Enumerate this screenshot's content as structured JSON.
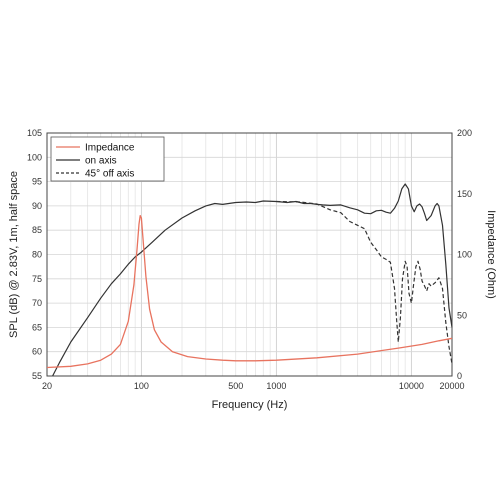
{
  "chart_data": {
    "type": "line",
    "xlabel": "Frequency (Hz)",
    "ylabel": "SPL (dB) @ 2.83V, 1m, half space",
    "y2label": "Impedance (Ohm)",
    "xscale": "log",
    "xlim": [
      20,
      20000
    ],
    "ylim": [
      55,
      105
    ],
    "y2lim": [
      0,
      200
    ],
    "grid": true,
    "legend_position": "top-left",
    "x_tick_labels": [
      "20",
      "100",
      "500",
      "1000",
      "10000",
      "20000"
    ],
    "x_tick_values": [
      20,
      100,
      500,
      1000,
      10000,
      20000
    ],
    "y_tick_labels": [
      "55",
      "60",
      "65",
      "70",
      "75",
      "80",
      "85",
      "90",
      "95",
      "100",
      "105"
    ],
    "y2_tick_labels": [
      "0",
      "50",
      "100",
      "150",
      "200"
    ],
    "series": [
      {
        "name": "Impedance",
        "axis": "right",
        "color": "#e8735f",
        "dash": "solid",
        "points": [
          [
            20,
            7
          ],
          [
            30,
            8
          ],
          [
            40,
            10
          ],
          [
            50,
            13
          ],
          [
            60,
            18
          ],
          [
            70,
            26
          ],
          [
            80,
            45
          ],
          [
            88,
            75
          ],
          [
            93,
            105
          ],
          [
            96,
            125
          ],
          [
            98,
            132
          ],
          [
            100,
            130
          ],
          [
            103,
            112
          ],
          [
            108,
            82
          ],
          [
            115,
            55
          ],
          [
            125,
            38
          ],
          [
            140,
            28
          ],
          [
            170,
            20
          ],
          [
            220,
            16
          ],
          [
            300,
            14
          ],
          [
            400,
            13
          ],
          [
            500,
            12.5
          ],
          [
            700,
            12.5
          ],
          [
            1000,
            13
          ],
          [
            2000,
            15
          ],
          [
            4000,
            18
          ],
          [
            8000,
            23
          ],
          [
            12000,
            26
          ],
          [
            16000,
            29
          ],
          [
            20000,
            31
          ]
        ]
      },
      {
        "name": "on axis",
        "axis": "left",
        "color": "#333333",
        "dash": "solid",
        "points": [
          [
            22,
            54.5
          ],
          [
            25,
            58
          ],
          [
            30,
            62
          ],
          [
            40,
            67
          ],
          [
            50,
            71
          ],
          [
            60,
            74
          ],
          [
            70,
            76
          ],
          [
            80,
            78
          ],
          [
            90,
            79.5
          ],
          [
            100,
            80.5
          ],
          [
            120,
            82.5
          ],
          [
            150,
            85
          ],
          [
            200,
            87.5
          ],
          [
            250,
            89
          ],
          [
            300,
            90
          ],
          [
            350,
            90.5
          ],
          [
            400,
            90.3
          ],
          [
            500,
            90.7
          ],
          [
            600,
            90.8
          ],
          [
            700,
            90.7
          ],
          [
            800,
            91
          ],
          [
            1000,
            90.9
          ],
          [
            1200,
            90.7
          ],
          [
            1400,
            90.9
          ],
          [
            1600,
            90.5
          ],
          [
            1800,
            90.5
          ],
          [
            2000,
            90.3
          ],
          [
            2200,
            90.2
          ],
          [
            2500,
            90.1
          ],
          [
            3000,
            90.2
          ],
          [
            3500,
            89.6
          ],
          [
            4000,
            89.2
          ],
          [
            4500,
            88.5
          ],
          [
            5000,
            88.4
          ],
          [
            5500,
            89
          ],
          [
            6000,
            89.1
          ],
          [
            6500,
            88.7
          ],
          [
            7000,
            88.5
          ],
          [
            7500,
            89.5
          ],
          [
            8000,
            91
          ],
          [
            8500,
            93.5
          ],
          [
            9000,
            94.5
          ],
          [
            9500,
            93.5
          ],
          [
            10000,
            90
          ],
          [
            10500,
            88.8
          ],
          [
            11000,
            90
          ],
          [
            11500,
            90.4
          ],
          [
            12000,
            89.8
          ],
          [
            12500,
            88.5
          ],
          [
            13000,
            87
          ],
          [
            14000,
            88
          ],
          [
            15000,
            90
          ],
          [
            15500,
            90.5
          ],
          [
            16000,
            90
          ],
          [
            17000,
            86
          ],
          [
            18000,
            78
          ],
          [
            19000,
            69
          ],
          [
            20000,
            65
          ]
        ]
      },
      {
        "name": "45° off axis",
        "axis": "left",
        "color": "#333333",
        "dash": "dashed",
        "points": [
          [
            1000,
            90.9
          ],
          [
            1500,
            90.8
          ],
          [
            2000,
            90.4
          ],
          [
            2500,
            89.2
          ],
          [
            3000,
            88.6
          ],
          [
            3500,
            86.8
          ],
          [
            4000,
            86
          ],
          [
            4500,
            85.3
          ],
          [
            5000,
            82.5
          ],
          [
            5500,
            81
          ],
          [
            6000,
            79.5
          ],
          [
            6500,
            79
          ],
          [
            7000,
            78.4
          ],
          [
            7500,
            73
          ],
          [
            7800,
            66
          ],
          [
            8000,
            62
          ],
          [
            8300,
            67
          ],
          [
            8600,
            75
          ],
          [
            9000,
            78.6
          ],
          [
            9300,
            77.5
          ],
          [
            9600,
            72
          ],
          [
            10000,
            70
          ],
          [
            10400,
            74
          ],
          [
            10800,
            77.5
          ],
          [
            11200,
            78.6
          ],
          [
            11600,
            77
          ],
          [
            12000,
            74.5
          ],
          [
            12500,
            73.6
          ],
          [
            13000,
            72.5
          ],
          [
            13500,
            74
          ],
          [
            14000,
            73.5
          ],
          [
            15000,
            74.2
          ],
          [
            16000,
            75.2
          ],
          [
            17000,
            73
          ],
          [
            18000,
            66
          ],
          [
            19000,
            61
          ],
          [
            20000,
            57.5
          ]
        ]
      }
    ]
  }
}
